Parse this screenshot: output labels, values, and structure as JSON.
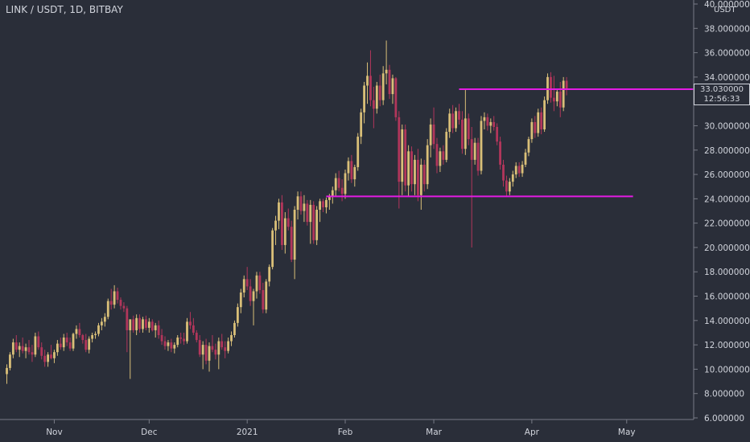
{
  "header": {
    "title": "LINK / USDT, 1D, BITBAY",
    "unit": "USDT"
  },
  "price_tag": {
    "price": "33.030000",
    "countdown": "12:56:33"
  },
  "colors": {
    "background": "#2a2e39",
    "up": "#d9bf78",
    "down": "#b2365b",
    "level_line": "#e31be3",
    "axis_text": "#d1d4dc"
  },
  "chart_data": {
    "type": "candlestick",
    "title": "LINK / USDT, 1D, BITBAY",
    "ylabel": "USDT",
    "ylim": [
      6,
      40
    ],
    "y_ticks": [
      "6.000000",
      "8.000000",
      "10.000000",
      "12.000000",
      "14.000000",
      "16.000000",
      "18.000000",
      "20.000000",
      "22.000000",
      "24.000000",
      "26.000000",
      "28.000000",
      "30.000000",
      "32.000000",
      "34.000000",
      "36.000000",
      "38.000000",
      "40.000000"
    ],
    "x_ticks": [
      {
        "label": "Nov",
        "day": 15
      },
      {
        "label": "Dec",
        "day": 45
      },
      {
        "label": "2021",
        "day": 76
      },
      {
        "label": "Feb",
        "day": 107
      },
      {
        "label": "Mar",
        "day": 135
      },
      {
        "label": "Apr",
        "day": 166
      },
      {
        "label": "May",
        "day": 196
      }
    ],
    "candles": [
      [
        9.6,
        10.4,
        8.8,
        10.1
      ],
      [
        10.1,
        11.4,
        9.9,
        11.2
      ],
      [
        11.2,
        12.5,
        10.9,
        12.2
      ],
      [
        12.2,
        12.8,
        11.4,
        11.6
      ],
      [
        11.6,
        12.2,
        11.0,
        11.9
      ],
      [
        11.9,
        12.6,
        11.3,
        11.5
      ],
      [
        11.5,
        12.1,
        10.9,
        11.8
      ],
      [
        11.8,
        12.4,
        11.2,
        11.4
      ],
      [
        11.4,
        12.0,
        10.6,
        11.2
      ],
      [
        11.2,
        13.0,
        11.0,
        12.7
      ],
      [
        12.7,
        13.1,
        11.6,
        11.8
      ],
      [
        11.8,
        12.2,
        10.8,
        11.1
      ],
      [
        11.1,
        11.6,
        10.2,
        10.6
      ],
      [
        10.6,
        11.4,
        10.2,
        11.2
      ],
      [
        11.2,
        12.0,
        10.8,
        10.9
      ],
      [
        10.9,
        11.6,
        10.5,
        11.4
      ],
      [
        11.4,
        12.4,
        11.1,
        12.1
      ],
      [
        12.1,
        12.6,
        11.6,
        11.8
      ],
      [
        11.8,
        12.9,
        11.5,
        12.6
      ],
      [
        12.6,
        13.0,
        11.9,
        12.2
      ],
      [
        12.2,
        12.6,
        11.5,
        11.7
      ],
      [
        11.7,
        13.0,
        11.5,
        12.9
      ],
      [
        12.9,
        13.6,
        12.5,
        13.3
      ],
      [
        13.3,
        13.8,
        12.6,
        12.8
      ],
      [
        12.8,
        12.9,
        12.1,
        12.4
      ],
      [
        12.4,
        12.9,
        11.4,
        11.6
      ],
      [
        11.6,
        12.7,
        11.3,
        12.5
      ],
      [
        12.5,
        13.0,
        12.2,
        12.8
      ],
      [
        12.8,
        13.1,
        12.5,
        12.9
      ],
      [
        12.9,
        13.8,
        12.7,
        13.6
      ],
      [
        13.6,
        14.2,
        13.2,
        13.9
      ],
      [
        13.9,
        14.6,
        13.5,
        14.3
      ],
      [
        14.3,
        15.8,
        14.1,
        15.6
      ],
      [
        15.6,
        16.6,
        14.9,
        15.3
      ],
      [
        15.3,
        16.9,
        15.0,
        16.4
      ],
      [
        16.4,
        16.7,
        15.4,
        15.7
      ],
      [
        15.7,
        15.9,
        14.9,
        15.2
      ],
      [
        15.2,
        15.5,
        14.7,
        15.0
      ],
      [
        15.0,
        15.2,
        11.4,
        13.2
      ],
      [
        13.2,
        14.0,
        9.2,
        14.1
      ],
      [
        14.1,
        14.4,
        13.0,
        13.2
      ],
      [
        13.2,
        14.5,
        12.8,
        14.2
      ],
      [
        14.2,
        14.5,
        13.0,
        13.3
      ],
      [
        13.3,
        14.3,
        13.0,
        14.1
      ],
      [
        14.1,
        14.4,
        13.2,
        13.4
      ],
      [
        13.4,
        14.2,
        13.0,
        13.9
      ],
      [
        13.9,
        14.1,
        13.1,
        13.2
      ],
      [
        13.2,
        13.8,
        12.6,
        13.6
      ],
      [
        13.6,
        14.0,
        12.5,
        12.8
      ],
      [
        12.8,
        13.3,
        12.0,
        12.3
      ],
      [
        12.3,
        12.7,
        11.6,
        11.9
      ],
      [
        11.9,
        12.4,
        11.5,
        12.2
      ],
      [
        12.2,
        12.5,
        11.4,
        11.7
      ],
      [
        11.7,
        12.2,
        11.3,
        12.0
      ],
      [
        12.0,
        12.8,
        11.8,
        12.6
      ],
      [
        12.6,
        13.0,
        12.1,
        12.5
      ],
      [
        12.5,
        13.0,
        12.0,
        12.3
      ],
      [
        12.3,
        14.2,
        12.1,
        13.9
      ],
      [
        13.9,
        14.7,
        13.3,
        13.6
      ],
      [
        13.6,
        14.2,
        12.8,
        13.0
      ],
      [
        13.0,
        13.2,
        12.2,
        12.4
      ],
      [
        12.4,
        12.8,
        11.0,
        11.2
      ],
      [
        11.2,
        12.3,
        10.0,
        12.0
      ],
      [
        12.0,
        12.5,
        10.4,
        10.7
      ],
      [
        10.7,
        12.2,
        9.8,
        11.9
      ],
      [
        11.9,
        12.8,
        11.4,
        11.6
      ],
      [
        11.6,
        12.1,
        10.8,
        11.2
      ],
      [
        11.2,
        12.6,
        10.0,
        12.3
      ],
      [
        12.3,
        12.9,
        11.6,
        11.8
      ],
      [
        11.8,
        12.3,
        10.9,
        11.5
      ],
      [
        11.5,
        12.6,
        11.3,
        12.3
      ],
      [
        12.3,
        13.1,
        11.9,
        12.8
      ],
      [
        12.8,
        14.0,
        12.6,
        13.8
      ],
      [
        13.8,
        15.4,
        13.5,
        15.1
      ],
      [
        15.1,
        16.6,
        14.6,
        16.3
      ],
      [
        16.3,
        17.7,
        15.9,
        17.4
      ],
      [
        17.4,
        18.4,
        16.5,
        16.8
      ],
      [
        16.8,
        17.4,
        15.2,
        15.6
      ],
      [
        15.6,
        16.6,
        13.6,
        16.4
      ],
      [
        16.4,
        18.0,
        15.8,
        17.7
      ],
      [
        17.7,
        18.0,
        16.2,
        16.5
      ],
      [
        16.5,
        17.1,
        14.6,
        14.9
      ],
      [
        14.9,
        17.4,
        14.6,
        17.2
      ],
      [
        17.2,
        18.6,
        16.8,
        18.4
      ],
      [
        18.4,
        21.6,
        18.2,
        21.4
      ],
      [
        21.4,
        22.6,
        20.2,
        22.2
      ],
      [
        22.2,
        24.0,
        21.5,
        23.7
      ],
      [
        23.7,
        24.3,
        19.8,
        20.2
      ],
      [
        20.2,
        22.9,
        19.5,
        22.4
      ],
      [
        22.4,
        23.2,
        21.4,
        21.7
      ],
      [
        21.7,
        22.2,
        18.8,
        19.0
      ],
      [
        19.0,
        23.4,
        17.4,
        23.1
      ],
      [
        23.1,
        24.6,
        22.3,
        24.2
      ],
      [
        24.2,
        24.6,
        22.7,
        23.0
      ],
      [
        23.0,
        24.3,
        22.1,
        23.6
      ],
      [
        23.6,
        23.9,
        21.8,
        22.1
      ],
      [
        22.1,
        23.9,
        20.3,
        23.5
      ],
      [
        23.5,
        23.8,
        20.3,
        20.6
      ],
      [
        20.6,
        23.4,
        20.2,
        23.1
      ],
      [
        23.1,
        24.0,
        22.1,
        23.8
      ],
      [
        23.8,
        24.0,
        22.9,
        23.3
      ],
      [
        23.3,
        24.1,
        22.8,
        23.9
      ],
      [
        23.9,
        24.4,
        23.1,
        24.2
      ],
      [
        24.2,
        25.0,
        23.6,
        24.7
      ],
      [
        24.7,
        26.1,
        24.2,
        25.7
      ],
      [
        25.7,
        26.3,
        24.6,
        24.9
      ],
      [
        24.9,
        25.6,
        23.8,
        24.4
      ],
      [
        24.4,
        26.4,
        24.0,
        26.1
      ],
      [
        26.1,
        27.4,
        25.5,
        27.1
      ],
      [
        27.1,
        27.6,
        25.3,
        25.6
      ],
      [
        25.6,
        26.8,
        25.0,
        26.6
      ],
      [
        26.6,
        29.4,
        26.3,
        29.1
      ],
      [
        29.1,
        31.4,
        28.5,
        31.1
      ],
      [
        31.1,
        33.6,
        30.2,
        33.3
      ],
      [
        33.3,
        35.2,
        31.8,
        34.1
      ],
      [
        34.1,
        36.2,
        31.6,
        32.1
      ],
      [
        32.1,
        33.2,
        29.8,
        31.4
      ],
      [
        31.4,
        33.6,
        31.0,
        33.3
      ],
      [
        33.3,
        34.2,
        31.6,
        32.1
      ],
      [
        32.1,
        34.9,
        31.7,
        34.3
      ],
      [
        34.3,
        37.0,
        33.4,
        34.6
      ],
      [
        34.6,
        35.0,
        32.2,
        32.6
      ],
      [
        32.6,
        34.2,
        31.8,
        33.9
      ],
      [
        33.9,
        34.0,
        30.4,
        30.7
      ],
      [
        30.7,
        31.2,
        23.2,
        25.4
      ],
      [
        25.4,
        30.1,
        24.3,
        29.7
      ],
      [
        29.7,
        30.1,
        24.6,
        25.1
      ],
      [
        25.1,
        28.4,
        24.2,
        27.9
      ],
      [
        27.9,
        28.3,
        24.6,
        25.2
      ],
      [
        25.2,
        27.6,
        24.3,
        27.2
      ],
      [
        27.2,
        28.1,
        23.8,
        24.3
      ],
      [
        24.3,
        27.3,
        23.1,
        26.8
      ],
      [
        26.8,
        27.2,
        24.6,
        25.2
      ],
      [
        25.2,
        28.9,
        24.8,
        28.4
      ],
      [
        28.4,
        30.6,
        27.4,
        30.1
      ],
      [
        30.1,
        31.5,
        28.1,
        28.5
      ],
      [
        28.5,
        29.0,
        26.1,
        26.7
      ],
      [
        26.7,
        28.2,
        26.2,
        27.9
      ],
      [
        27.9,
        28.4,
        26.8,
        27.2
      ],
      [
        27.2,
        29.8,
        27.0,
        29.5
      ],
      [
        29.5,
        31.4,
        29.0,
        31.0
      ],
      [
        31.0,
        31.7,
        29.4,
        29.8
      ],
      [
        29.8,
        31.5,
        29.5,
        31.2
      ],
      [
        31.2,
        31.8,
        30.1,
        30.5
      ],
      [
        30.5,
        31.2,
        27.7,
        28.1
      ],
      [
        28.1,
        33.0,
        27.6,
        30.6
      ],
      [
        30.6,
        31.0,
        28.4,
        28.9
      ],
      [
        28.9,
        29.9,
        20.0,
        27.2
      ],
      [
        27.2,
        29.0,
        26.8,
        28.6
      ],
      [
        28.6,
        29.0,
        25.9,
        26.3
      ],
      [
        26.3,
        30.8,
        26.0,
        30.4
      ],
      [
        30.4,
        31.1,
        29.7,
        30.7
      ],
      [
        30.7,
        31.0,
        29.6,
        30.0
      ],
      [
        30.0,
        30.6,
        29.4,
        30.3
      ],
      [
        30.3,
        30.8,
        29.6,
        29.9
      ],
      [
        29.9,
        30.2,
        28.4,
        28.7
      ],
      [
        28.7,
        29.1,
        26.4,
        26.8
      ],
      [
        26.8,
        27.2,
        25.0,
        25.5
      ],
      [
        25.5,
        25.9,
        24.2,
        24.6
      ],
      [
        24.6,
        25.7,
        24.3,
        25.4
      ],
      [
        25.4,
        26.3,
        25.0,
        26.0
      ],
      [
        26.0,
        27.0,
        25.7,
        26.7
      ],
      [
        26.7,
        27.0,
        25.8,
        26.1
      ],
      [
        26.1,
        27.1,
        25.8,
        26.8
      ],
      [
        26.8,
        28.1,
        26.6,
        27.8
      ],
      [
        27.8,
        29.1,
        27.5,
        28.9
      ],
      [
        28.9,
        30.6,
        28.6,
        30.3
      ],
      [
        30.3,
        30.8,
        29.0,
        29.4
      ],
      [
        29.4,
        31.4,
        29.1,
        31.1
      ],
      [
        31.1,
        31.5,
        29.3,
        29.7
      ],
      [
        29.7,
        32.4,
        29.5,
        32.1
      ],
      [
        32.1,
        34.3,
        31.8,
        34.0
      ],
      [
        34.0,
        34.4,
        31.9,
        32.3
      ],
      [
        32.3,
        34.1,
        31.2,
        32.0
      ],
      [
        32.0,
        33.0,
        31.6,
        32.8
      ],
      [
        32.8,
        33.6,
        30.7,
        31.5
      ],
      [
        31.5,
        34.0,
        31.2,
        33.7
      ],
      [
        33.7,
        34.0,
        32.5,
        33.0
      ]
    ],
    "levels": [
      {
        "price": 33.0,
        "from_day": 143,
        "to_day": 217
      },
      {
        "price": 24.2,
        "from_day": 101,
        "to_day": 198
      }
    ],
    "last_price": 33.03
  }
}
